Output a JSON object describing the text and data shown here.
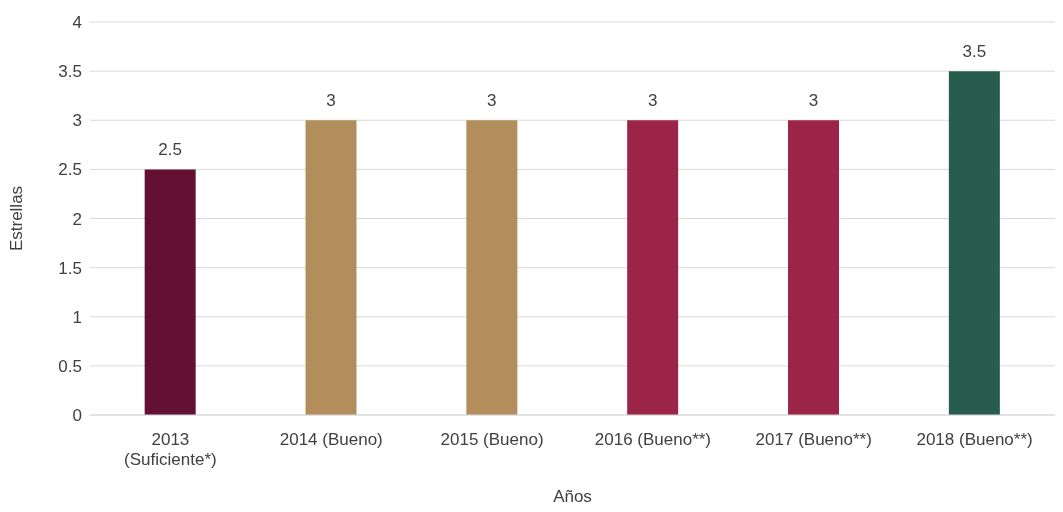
{
  "chart_data": {
    "type": "bar",
    "xlabel": "Años",
    "ylabel": "Estrellas",
    "categories": [
      "2013 (Suficiente*)",
      "2014 (Bueno)",
      "2015 (Bueno)",
      "2016 (Bueno**)",
      "2017 (Bueno**)",
      "2018 (Bueno**)"
    ],
    "values": [
      2.5,
      3,
      3,
      3,
      3,
      3.5
    ],
    "colors": [
      "#621132",
      "#b38e5d",
      "#b38e5d",
      "#9d2449",
      "#9d2449",
      "#285c4d"
    ],
    "ylim": [
      0,
      4
    ],
    "yticks": [
      0,
      0.5,
      1,
      1.5,
      2,
      2.5,
      3,
      3.5,
      4
    ],
    "grid": "y",
    "data_labels": true
  }
}
